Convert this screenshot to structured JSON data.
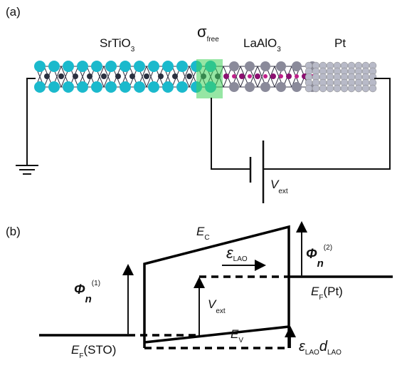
{
  "panel_a": {
    "label": "(a)",
    "sto": {
      "main": "SrTiO",
      "sub": "3"
    },
    "sigma": {
      "main": "σ",
      "sub": "free"
    },
    "lao": {
      "main": "LaAlO",
      "sub": "3"
    },
    "pt": "Pt",
    "vext": {
      "main": "V",
      "sub": "ext"
    }
  },
  "panel_b": {
    "label": "(b)",
    "ec": {
      "main": "E",
      "sub": "C"
    },
    "eps_lao": {
      "main": "ε",
      "sub": "LAO"
    },
    "phi2": {
      "main": "Φ",
      "sub": "n",
      "sup": "(2)"
    },
    "ef_pt": {
      "main": "E",
      "sub": "F",
      "rest": "(Pt)"
    },
    "vext": {
      "main": "V",
      "sub": "ext"
    },
    "phi1": {
      "main": "Φ",
      "sub": "n",
      "sup": "(1)"
    },
    "ef_sto": {
      "main": "E",
      "sub": "F",
      "rest": "(STO)"
    },
    "ev": {
      "main": "E",
      "sub": "V"
    },
    "eps_d": {
      "main": "ε",
      "sub": "LAO",
      "main2": "d",
      "sub2": "LAO"
    }
  }
}
